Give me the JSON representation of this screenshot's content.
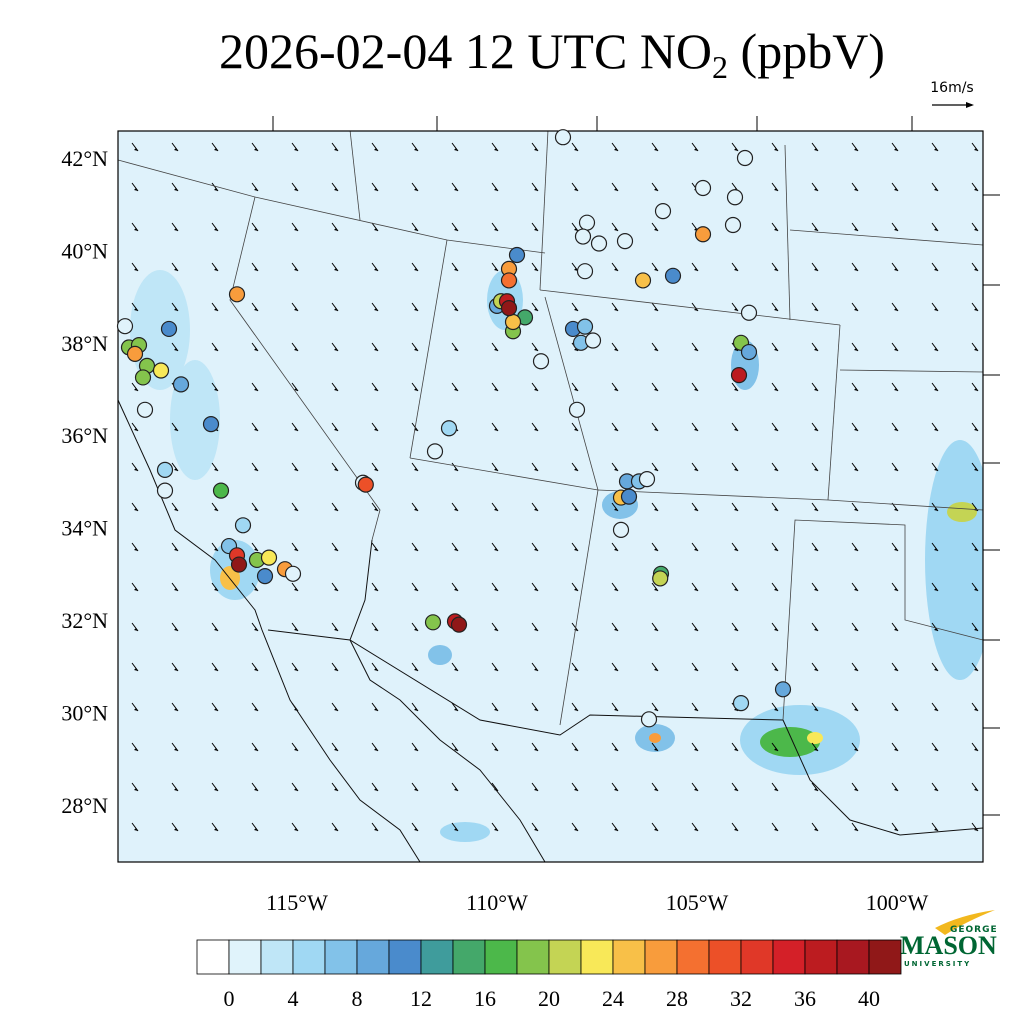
{
  "title": {
    "main": "2026-02-04 12 UTC NO",
    "subscript": "2",
    "units": " (ppbV)"
  },
  "wind_reference": "16m/s",
  "lat_labels": [
    {
      "value": 42,
      "label": "42°N"
    },
    {
      "value": 40,
      "label": "40°N"
    },
    {
      "value": 38,
      "label": "38°N"
    },
    {
      "value": 36,
      "label": "36°N"
    },
    {
      "value": 34,
      "label": "34°N"
    },
    {
      "value": 32,
      "label": "32°N"
    },
    {
      "value": 30,
      "label": "30°N"
    },
    {
      "value": 28,
      "label": "28°N"
    }
  ],
  "lon_labels": [
    {
      "value": -115,
      "label": "115°W"
    },
    {
      "value": -110,
      "label": "110°W"
    },
    {
      "value": -105,
      "label": "105°W"
    },
    {
      "value": -100,
      "label": "100°W"
    }
  ],
  "colorbar": {
    "levels": [
      0,
      2,
      4,
      6,
      8,
      10,
      12,
      14,
      16,
      18,
      20,
      22,
      24,
      26,
      28,
      30,
      32,
      34,
      36,
      38,
      40
    ],
    "ticks": [
      0,
      4,
      8,
      12,
      16,
      20,
      24,
      28,
      32,
      36,
      40
    ],
    "colors": [
      "#ffffff",
      "#e0f3fb",
      "#bfe6f7",
      "#a0d8f3",
      "#82c2e9",
      "#66a8dc",
      "#4a8bcc",
      "#3f9c9c",
      "#44a86a",
      "#4cb84a",
      "#84c44c",
      "#c4d454",
      "#f8e858",
      "#f8c048",
      "#f89c3c",
      "#f47030",
      "#ec5028",
      "#e03828",
      "#d42028",
      "#bc1c20",
      "#a81820",
      "#901818"
    ]
  },
  "stations": [
    {
      "lon": -119.3,
      "lat": 38.36,
      "value": 1
    },
    {
      "lon": -119.2,
      "lat": 37.9,
      "value": 18
    },
    {
      "lon": -118.95,
      "lat": 37.95,
      "value": 18
    },
    {
      "lon": -119.05,
      "lat": 37.76,
      "value": 26
    },
    {
      "lon": -118.75,
      "lat": 37.5,
      "value": 19
    },
    {
      "lon": -118.4,
      "lat": 37.4,
      "value": 23
    },
    {
      "lon": -118.85,
      "lat": 37.25,
      "value": 19
    },
    {
      "lon": -118.2,
      "lat": 38.3,
      "value": 10
    },
    {
      "lon": -117.9,
      "lat": 37.1,
      "value": 9
    },
    {
      "lon": -118.8,
      "lat": 36.55,
      "value": 1
    },
    {
      "lon": -117.15,
      "lat": 36.24,
      "value": 11
    },
    {
      "lon": -118.3,
      "lat": 35.25,
      "value": 4
    },
    {
      "lon": -118.3,
      "lat": 34.8,
      "value": 1
    },
    {
      "lon": -116.9,
      "lat": 34.8,
      "value": 17
    },
    {
      "lon": -116.5,
      "lat": 39.05,
      "value": 27
    },
    {
      "lon": -116.35,
      "lat": 34.05,
      "value": 5
    },
    {
      "lon": -116.7,
      "lat": 33.6,
      "value": 7
    },
    {
      "lon": -116.5,
      "lat": 33.4,
      "value": 33
    },
    {
      "lon": -116.45,
      "lat": 33.2,
      "value": 41
    },
    {
      "lon": -116.0,
      "lat": 33.3,
      "value": 19
    },
    {
      "lon": -115.7,
      "lat": 33.35,
      "value": 23
    },
    {
      "lon": -115.8,
      "lat": 32.95,
      "value": 10
    },
    {
      "lon": -115.3,
      "lat": 33.1,
      "value": 27
    },
    {
      "lon": -115.1,
      "lat": 33.0,
      "value": 1
    },
    {
      "lon": -113.35,
      "lat": 34.97,
      "value": 1
    },
    {
      "lon": -113.28,
      "lat": 34.93,
      "value": 31
    },
    {
      "lon": -111.2,
      "lat": 36.15,
      "value": 4
    },
    {
      "lon": -111.55,
      "lat": 35.65,
      "value": 1
    },
    {
      "lon": -109.5,
      "lat": 39.9,
      "value": 11
    },
    {
      "lon": -109.7,
      "lat": 39.6,
      "value": 27
    },
    {
      "lon": -109.7,
      "lat": 39.35,
      "value": 29
    },
    {
      "lon": -110.0,
      "lat": 38.8,
      "value": 9
    },
    {
      "lon": -109.9,
      "lat": 38.9,
      "value": 21
    },
    {
      "lon": -109.3,
      "lat": 38.55,
      "value": 15
    },
    {
      "lon": -109.6,
      "lat": 38.25,
      "value": 18
    },
    {
      "lon": -109.6,
      "lat": 38.45,
      "value": 24
    },
    {
      "lon": -109.75,
      "lat": 38.9,
      "value": 37
    },
    {
      "lon": -109.7,
      "lat": 38.75,
      "value": 41
    },
    {
      "lon": -108.9,
      "lat": 37.6,
      "value": 1
    },
    {
      "lon": -108.35,
      "lat": 42.45,
      "value": 1
    },
    {
      "lon": -108.0,
      "lat": 36.55,
      "value": 1
    },
    {
      "lon": -108.1,
      "lat": 38.3,
      "value": 10
    },
    {
      "lon": -107.9,
      "lat": 38.0,
      "value": 6
    },
    {
      "lon": -107.8,
      "lat": 38.35,
      "value": 6
    },
    {
      "lon": -107.6,
      "lat": 38.05,
      "value": 1
    },
    {
      "lon": -107.75,
      "lat": 40.6,
      "value": 1
    },
    {
      "lon": -107.85,
      "lat": 40.3,
      "value": 1
    },
    {
      "lon": -107.45,
      "lat": 40.15,
      "value": 1
    },
    {
      "lon": -107.8,
      "lat": 39.55,
      "value": 1
    },
    {
      "lon": -106.8,
      "lat": 40.2,
      "value": 1
    },
    {
      "lon": -106.35,
      "lat": 39.35,
      "value": 24
    },
    {
      "lon": -105.6,
      "lat": 39.45,
      "value": 11
    },
    {
      "lon": -105.85,
      "lat": 40.85,
      "value": 1
    },
    {
      "lon": -104.85,
      "lat": 41.35,
      "value": 1
    },
    {
      "lon": -104.85,
      "lat": 40.35,
      "value": 27
    },
    {
      "lon": -104.05,
      "lat": 41.15,
      "value": 1
    },
    {
      "lon": -103.8,
      "lat": 42.0,
      "value": 1
    },
    {
      "lon": -104.1,
      "lat": 40.55,
      "value": 1
    },
    {
      "lon": -103.7,
      "lat": 38.65,
      "value": 1
    },
    {
      "lon": -103.9,
      "lat": 38.0,
      "value": 19
    },
    {
      "lon": -103.7,
      "lat": 37.8,
      "value": 8
    },
    {
      "lon": -103.95,
      "lat": 37.3,
      "value": 37
    },
    {
      "lon": -106.75,
      "lat": 35.0,
      "value": 9
    },
    {
      "lon": -106.45,
      "lat": 35.0,
      "value": 6
    },
    {
      "lon": -106.25,
      "lat": 35.05,
      "value": 1
    },
    {
      "lon": -106.9,
      "lat": 34.65,
      "value": 24
    },
    {
      "lon": -106.7,
      "lat": 34.67,
      "value": 11
    },
    {
      "lon": -106.9,
      "lat": 33.95,
      "value": 1
    },
    {
      "lon": -105.9,
      "lat": 33.0,
      "value": 15
    },
    {
      "lon": -105.92,
      "lat": 32.9,
      "value": 21
    },
    {
      "lon": -111.6,
      "lat": 31.95,
      "value": 18
    },
    {
      "lon": -111.05,
      "lat": 31.97,
      "value": 36
    },
    {
      "lon": -110.95,
      "lat": 31.9,
      "value": 40
    },
    {
      "lon": -106.2,
      "lat": 29.85,
      "value": 1
    },
    {
      "lon": -103.9,
      "lat": 30.2,
      "value": 5
    },
    {
      "lon": -102.85,
      "lat": 30.5,
      "value": 9
    }
  ],
  "logo": {
    "top": "GEORGE",
    "main": "MASON",
    "bottom": "UNIVERSITY"
  }
}
